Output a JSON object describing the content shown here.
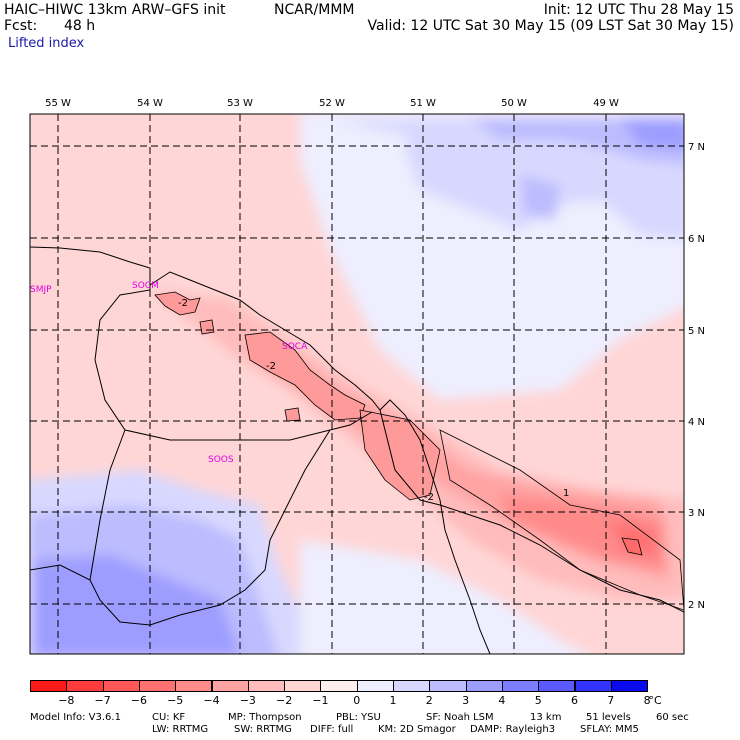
{
  "header": {
    "model_title": "HAIC–HIWC 13km ARW–GFS init",
    "org": "NCAR/MMM",
    "fcst_label": "Fcst:",
    "fcst_value": "48 h",
    "init": "Init: 12 UTC Thu 28 May 15",
    "valid": "Valid: 12 UTC Sat 30 May 15 (09 LST Sat 30 May 15)",
    "field": "Lifted index"
  },
  "map": {
    "lon_labels": [
      "55 W",
      "54 W",
      "53 W",
      "52 W",
      "51 W",
      "50 W",
      "49 W"
    ],
    "lat_labels": [
      "7 N",
      "6 N",
      "5 N",
      "4 N",
      "3 N",
      "2 N"
    ],
    "stations": [
      "SMJP",
      "SOCM",
      "SOCA",
      "SOOS"
    ],
    "contour_labels": [
      "-2",
      "-2",
      "-2",
      "1"
    ]
  },
  "colorbar": {
    "ticks": [
      "−8",
      "−7",
      "−6",
      "−5",
      "−4",
      "−3",
      "−2",
      "−1",
      "0",
      "1",
      "2",
      "3",
      "4",
      "5",
      "6",
      "7",
      "8"
    ],
    "unit": "°C",
    "colors": [
      "#ff1a1a",
      "#ff3b3b",
      "#ff5757",
      "#ff7070",
      "#ff8a8a",
      "#ffa3a3",
      "#ffbcbc",
      "#ffd6d6",
      "#ffeeee",
      "#eeeeff",
      "#d8d8ff",
      "#bcbcff",
      "#9d9dff",
      "#7d7dff",
      "#5a5aff",
      "#3333ff",
      "#0a0aee"
    ]
  },
  "footer": {
    "line1": [
      "Model Info: V3.6.1",
      "CU: KF",
      "MP: Thompson",
      "PBL: YSU",
      "SF: Noah LSM",
      "13 km",
      "51 levels",
      "60 sec"
    ],
    "line2": [
      "LW: RRTMG",
      "SW: RRTMG",
      "DIFF: full",
      "KM: 2D Smagor",
      "DAMP: Rayleigh3",
      "SFLAY: MM5"
    ]
  },
  "colors": {
    "station": "#e000e0",
    "header_blue": "#1a1aa6",
    "warm": "#ff8a8a",
    "cool": "#9d9dff"
  }
}
